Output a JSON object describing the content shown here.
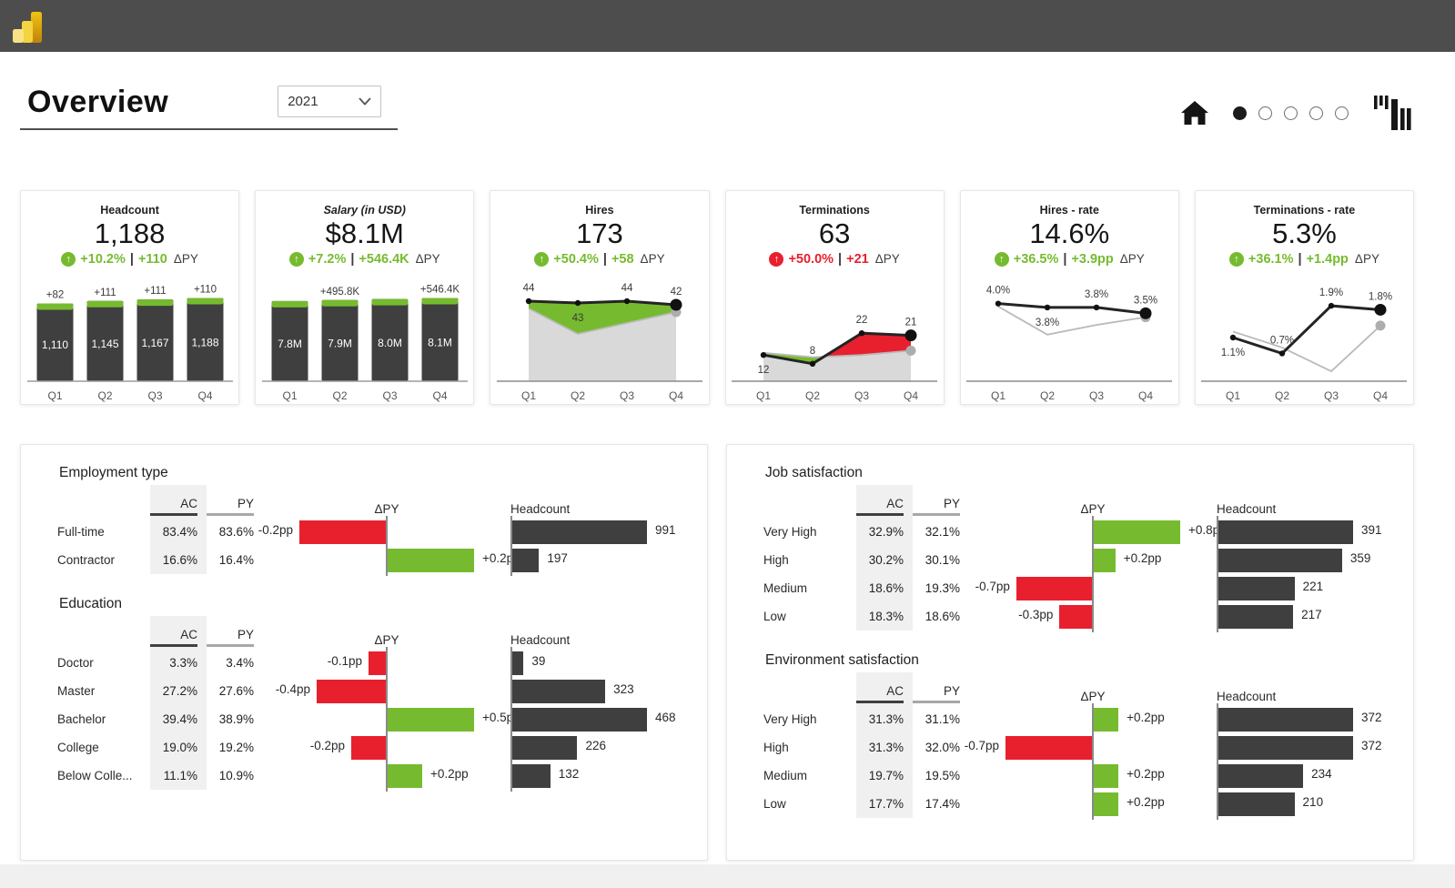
{
  "colors": {
    "green": "#76bb2f",
    "red": "#e8202e",
    "dark": "#3f3f3f",
    "gray_line": "#b9b9b9",
    "gray_fill": "#d9d9d9",
    "topbar": "#4d4d4d",
    "powerbi_yellow": "#f2c811"
  },
  "icons": {
    "up_arrow": "↑"
  },
  "header": {
    "title": "Overview",
    "year_filter": {
      "value": "2021"
    },
    "nav": {
      "home_icon": "home",
      "pages": 5,
      "active_page": 0
    },
    "brand_icon": "bar-chart-logo"
  },
  "kpi_cards": [
    {
      "title": "Headcount",
      "value": "1,188",
      "delta_pct": "+10.2%",
      "delta_sep": "|",
      "delta_abs": "+110",
      "delta_suffix": "ΔPY",
      "sentiment": "good",
      "chart": {
        "type": "bar",
        "categories": [
          "Q1",
          "Q2",
          "Q3",
          "Q4"
        ],
        "ac": [
          1110,
          1145,
          1167,
          1188
        ],
        "delta_labels": [
          "+82",
          "+111",
          "+111",
          "+110"
        ],
        "bar_labels": [
          "1,110",
          "1,145",
          "1,167",
          "1,188"
        ]
      }
    },
    {
      "title": "Salary (in USD)",
      "title_style": "italic",
      "value": "$8.1M",
      "delta_pct": "+7.2%",
      "delta_sep": "|",
      "delta_abs": "+546.4K",
      "delta_suffix": "ΔPY",
      "sentiment": "good",
      "chart": {
        "type": "bar",
        "categories": [
          "Q1",
          "Q2",
          "Q3",
          "Q4"
        ],
        "ac": [
          7.8,
          7.9,
          8.0,
          8.1
        ],
        "delta_labels": [
          "",
          "+495.8K",
          "",
          "+546.4K"
        ],
        "bar_labels": [
          "7.8M",
          "7.9M",
          "8.0M",
          "8.1M"
        ]
      }
    },
    {
      "title": "Hires",
      "value": "173",
      "delta_pct": "+50.4%",
      "delta_sep": "|",
      "delta_abs": "+58",
      "delta_suffix": "ΔPY",
      "sentiment": "good",
      "chart": {
        "type": "line",
        "fill": true,
        "up_good": true,
        "ymax": 48,
        "categories": [
          "Q1",
          "Q2",
          "Q3",
          "Q4"
        ],
        "ac": [
          44,
          43,
          44,
          42
        ],
        "py": [
          40,
          26,
          32,
          38
        ],
        "labels": [
          "44",
          "43",
          "44",
          "42"
        ],
        "label_pos": [
          "above",
          "below",
          "above",
          "above"
        ]
      }
    },
    {
      "title": "Terminations",
      "value": "63",
      "delta_pct": "+50.0%",
      "delta_sep": "|",
      "delta_abs": "+21",
      "delta_suffix": "ΔPY",
      "sentiment": "bad",
      "chart": {
        "type": "line",
        "fill": true,
        "up_good": false,
        "ymax": 40,
        "categories": [
          "Q1",
          "Q2",
          "Q3",
          "Q4"
        ],
        "ac": [
          12,
          8,
          22,
          21
        ],
        "py": [
          13,
          11,
          12,
          14
        ],
        "labels": [
          "12",
          "8",
          "22",
          "21"
        ],
        "label_pos": [
          "below",
          "above",
          "above",
          "above"
        ]
      }
    },
    {
      "title": "Hires - rate",
      "value": "14.6%",
      "delta_pct": "+36.5%",
      "delta_sep": "|",
      "delta_abs": "+3.9pp",
      "delta_suffix": "ΔPY",
      "sentiment": "good",
      "chart": {
        "type": "line",
        "fill": false,
        "up_good": true,
        "ymax": 4.5,
        "categories": [
          "Q1",
          "Q2",
          "Q3",
          "Q4"
        ],
        "ac": [
          4.0,
          3.8,
          3.8,
          3.5
        ],
        "py": [
          3.85,
          2.4,
          2.9,
          3.3
        ],
        "labels": [
          "4.0%",
          "3.8%",
          "3.8%",
          "3.5%"
        ],
        "label_pos": [
          "above",
          "below",
          "above",
          "above"
        ]
      }
    },
    {
      "title": "Terminations - rate",
      "value": "5.3%",
      "delta_pct": "+36.1%",
      "delta_sep": "|",
      "delta_abs": "+1.4pp",
      "delta_suffix": "ΔPY",
      "sentiment": "good",
      "chart": {
        "type": "line",
        "fill": false,
        "up_good": true,
        "ymax": 2.2,
        "categories": [
          "Q1",
          "Q2",
          "Q3",
          "Q4"
        ],
        "ac": [
          1.1,
          0.7,
          1.9,
          1.8
        ],
        "py": [
          1.25,
          0.85,
          0.25,
          1.4
        ],
        "labels": [
          "1.1%",
          "0.7%",
          "1.9%",
          "1.8%"
        ],
        "label_pos": [
          "below",
          "above",
          "above",
          "above"
        ]
      }
    }
  ],
  "panels": [
    {
      "sections": [
        {
          "title": "Employment type",
          "col_headers": {
            "ac": "AC",
            "py": "PY",
            "delta": "ΔPY",
            "bar": "Headcount"
          },
          "rows": [
            {
              "label": "Full-time",
              "ac": "83.4%",
              "py": "83.6%",
              "dpy": -0.2,
              "dpy_label": "-0.2pp",
              "headcount": 991,
              "headcount_label": "991"
            },
            {
              "label": "Contractor",
              "ac": "16.6%",
              "py": "16.4%",
              "dpy": 0.2,
              "dpy_label": "+0.2pp",
              "headcount": 197,
              "headcount_label": "197"
            }
          ]
        },
        {
          "title": "Education",
          "col_headers": {
            "ac": "AC",
            "py": "PY",
            "delta": "ΔPY",
            "bar": "Headcount"
          },
          "rows": [
            {
              "label": "Doctor",
              "ac": "3.3%",
              "py": "3.4%",
              "dpy": -0.1,
              "dpy_label": "-0.1pp",
              "headcount": 39,
              "headcount_label": "39"
            },
            {
              "label": "Master",
              "ac": "27.2%",
              "py": "27.6%",
              "dpy": -0.4,
              "dpy_label": "-0.4pp",
              "headcount": 323,
              "headcount_label": "323"
            },
            {
              "label": "Bachelor",
              "ac": "39.4%",
              "py": "38.9%",
              "dpy": 0.5,
              "dpy_label": "+0.5pp",
              "headcount": 468,
              "headcount_label": "468"
            },
            {
              "label": "College",
              "ac": "19.0%",
              "py": "19.2%",
              "dpy": -0.2,
              "dpy_label": "-0.2pp",
              "headcount": 226,
              "headcount_label": "226"
            },
            {
              "label": "Below Colle...",
              "ac": "11.1%",
              "py": "10.9%",
              "dpy": 0.2,
              "dpy_label": "+0.2pp",
              "headcount": 132,
              "headcount_label": "132"
            }
          ]
        }
      ]
    },
    {
      "sections": [
        {
          "title": "Job satisfaction",
          "col_headers": {
            "ac": "AC",
            "py": "PY",
            "delta": "ΔPY",
            "bar": "Headcount"
          },
          "rows": [
            {
              "label": "Very High",
              "ac": "32.9%",
              "py": "32.1%",
              "dpy": 0.8,
              "dpy_label": "+0.8pp",
              "headcount": 391,
              "headcount_label": "391"
            },
            {
              "label": "High",
              "ac": "30.2%",
              "py": "30.1%",
              "dpy": 0.2,
              "dpy_label": "+0.2pp",
              "headcount": 359,
              "headcount_label": "359"
            },
            {
              "label": "Medium",
              "ac": "18.6%",
              "py": "19.3%",
              "dpy": -0.7,
              "dpy_label": "-0.7pp",
              "headcount": 221,
              "headcount_label": "221"
            },
            {
              "label": "Low",
              "ac": "18.3%",
              "py": "18.6%",
              "dpy": -0.3,
              "dpy_label": "-0.3pp",
              "headcount": 217,
              "headcount_label": "217"
            }
          ]
        },
        {
          "title": "Environment satisfaction",
          "col_headers": {
            "ac": "AC",
            "py": "PY",
            "delta": "ΔPY",
            "bar": "Headcount"
          },
          "rows": [
            {
              "label": "Very High",
              "ac": "31.3%",
              "py": "31.1%",
              "dpy": 0.2,
              "dpy_label": "+0.2pp",
              "headcount": 372,
              "headcount_label": "372"
            },
            {
              "label": "High",
              "ac": "31.3%",
              "py": "32.0%",
              "dpy": -0.7,
              "dpy_label": "-0.7pp",
              "headcount": 372,
              "headcount_label": "372"
            },
            {
              "label": "Medium",
              "ac": "19.7%",
              "py": "19.5%",
              "dpy": 0.2,
              "dpy_label": "+0.2pp",
              "headcount": 234,
              "headcount_label": "234"
            },
            {
              "label": "Low",
              "ac": "17.7%",
              "py": "17.4%",
              "dpy": 0.2,
              "dpy_label": "+0.2pp",
              "headcount": 210,
              "headcount_label": "210"
            }
          ]
        }
      ]
    }
  ]
}
